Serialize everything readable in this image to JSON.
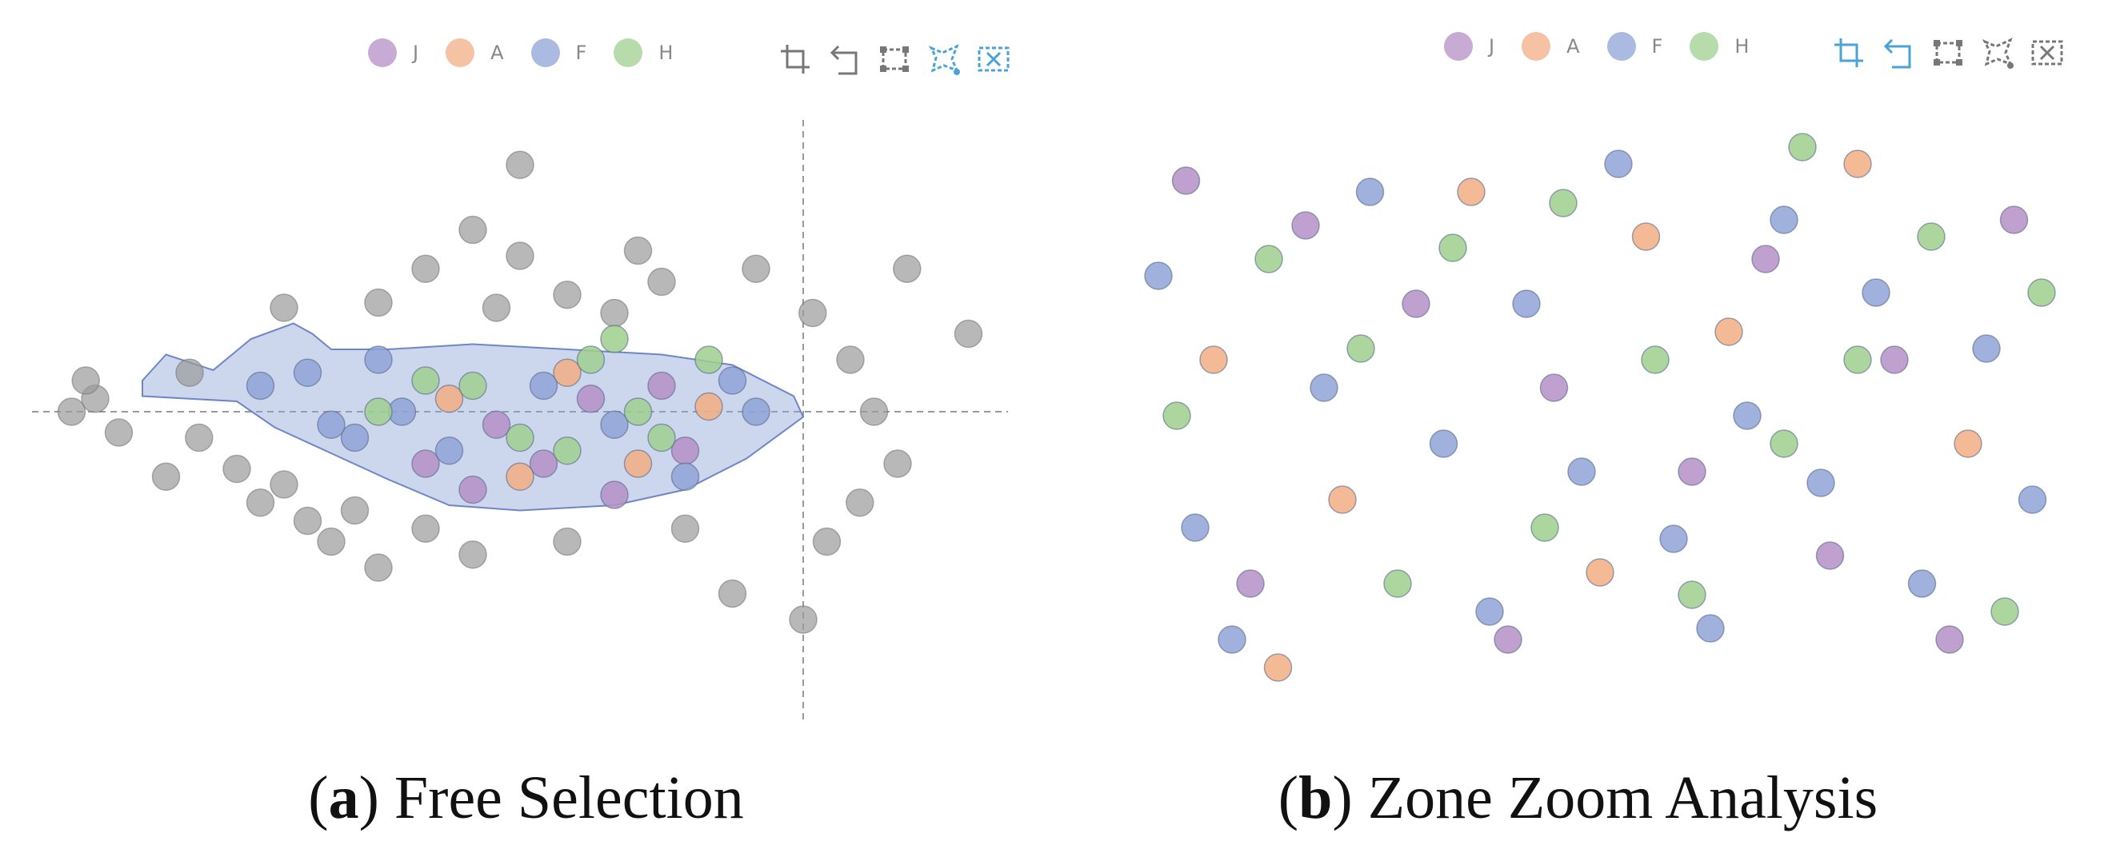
{
  "legend": [
    {
      "label": "J",
      "color": "#b58fc6"
    },
    {
      "label": "A",
      "color": "#f2ae84"
    },
    {
      "label": "F",
      "color": "#8ea3d6"
    },
    {
      "label": "H",
      "color": "#9fcf8e"
    }
  ],
  "colors": {
    "unselected": "#9a9a9a",
    "selection_fill": "#8ea3d6",
    "tool_default": "#777777",
    "tool_active": "#4aa3d6"
  },
  "toolbar_icons": [
    "zoom-icon",
    "zoom-reset-icon",
    "rect-select-icon",
    "lasso-select-icon",
    "clear-select-icon"
  ],
  "panels": [
    {
      "letter": "a",
      "caption": " Free Selection"
    },
    {
      "letter": "b",
      "caption": " Zone Zoom Analysis"
    }
  ],
  "chart_data": [
    {
      "type": "scatter",
      "title": "Free Selection",
      "categories": [
        "J",
        "A",
        "F",
        "H"
      ],
      "x_range": [
        -1,
        1
      ],
      "y_range": [
        -1,
        1
      ],
      "grid": false,
      "note": "approximate distribution read from image; gray points are outside the lasso selection",
      "reference_lines": {
        "x": 0.6,
        "y": 0.0
      },
      "selection_polygon": [
        [
          -0.8,
          0.12
        ],
        [
          -0.75,
          0.22
        ],
        [
          -0.65,
          0.16
        ],
        [
          -0.57,
          0.28
        ],
        [
          -0.48,
          0.34
        ],
        [
          -0.44,
          0.3
        ],
        [
          -0.4,
          0.24
        ],
        [
          -0.28,
          0.24
        ],
        [
          -0.1,
          0.26
        ],
        [
          0.1,
          0.24
        ],
        [
          0.3,
          0.22
        ],
        [
          0.45,
          0.18
        ],
        [
          0.58,
          0.06
        ],
        [
          0.6,
          -0.02
        ],
        [
          0.48,
          -0.18
        ],
        [
          0.35,
          -0.3
        ],
        [
          0.2,
          -0.36
        ],
        [
          0.0,
          -0.38
        ],
        [
          -0.15,
          -0.36
        ],
        [
          -0.28,
          -0.26
        ],
        [
          -0.4,
          -0.16
        ],
        [
          -0.52,
          -0.06
        ],
        [
          -0.6,
          0.04
        ],
        [
          -0.8,
          0.06
        ]
      ],
      "series": [
        {
          "name": "unselected",
          "points": [
            [
              -0.95,
              0.0
            ],
            [
              -0.9,
              0.05
            ],
            [
              -0.85,
              -0.08
            ],
            [
              -0.92,
              0.12
            ],
            [
              -0.7,
              0.15
            ],
            [
              -0.68,
              -0.1
            ],
            [
              -0.6,
              -0.22
            ],
            [
              -0.55,
              -0.35
            ],
            [
              -0.5,
              -0.28
            ],
            [
              -0.45,
              -0.42
            ],
            [
              -0.4,
              -0.5
            ],
            [
              -0.35,
              -0.38
            ],
            [
              -0.3,
              0.42
            ],
            [
              -0.2,
              0.55
            ],
            [
              -0.1,
              0.7
            ],
            [
              0.0,
              0.6
            ],
            [
              -0.05,
              0.4
            ],
            [
              0.1,
              0.45
            ],
            [
              0.2,
              0.38
            ],
            [
              0.3,
              0.5
            ],
            [
              0.5,
              0.55
            ],
            [
              0.62,
              0.38
            ],
            [
              0.7,
              0.2
            ],
            [
              0.75,
              0.0
            ],
            [
              0.8,
              -0.2
            ],
            [
              0.72,
              -0.35
            ],
            [
              0.65,
              -0.5
            ],
            [
              0.6,
              -0.8
            ],
            [
              0.82,
              0.55
            ],
            [
              0.95,
              0.3
            ],
            [
              -0.1,
              -0.55
            ],
            [
              -0.2,
              -0.45
            ],
            [
              0.1,
              -0.5
            ],
            [
              0.35,
              -0.45
            ],
            [
              0.45,
              -0.7
            ],
            [
              -0.3,
              -0.6
            ],
            [
              0.0,
              0.95
            ],
            [
              0.25,
              0.62
            ],
            [
              -0.5,
              0.4
            ],
            [
              -0.75,
              -0.25
            ]
          ]
        },
        {
          "name": "J",
          "points": [
            [
              -0.1,
              -0.3
            ],
            [
              0.05,
              -0.2
            ],
            [
              0.2,
              -0.32
            ],
            [
              0.35,
              -0.15
            ],
            [
              -0.05,
              -0.05
            ],
            [
              0.15,
              0.05
            ],
            [
              0.3,
              0.1
            ],
            [
              -0.2,
              -0.2
            ]
          ]
        },
        {
          "name": "A",
          "points": [
            [
              0.0,
              -0.25
            ],
            [
              0.25,
              -0.2
            ],
            [
              0.4,
              0.02
            ],
            [
              -0.15,
              0.05
            ],
            [
              0.1,
              0.15
            ]
          ]
        },
        {
          "name": "F",
          "points": [
            [
              -0.55,
              0.1
            ],
            [
              -0.45,
              0.15
            ],
            [
              -0.35,
              -0.1
            ],
            [
              -0.25,
              0.0
            ],
            [
              -0.15,
              -0.15
            ],
            [
              0.05,
              0.1
            ],
            [
              0.2,
              -0.05
            ],
            [
              0.35,
              -0.25
            ],
            [
              0.5,
              0.0
            ],
            [
              -0.4,
              -0.05
            ],
            [
              0.45,
              0.12
            ],
            [
              -0.3,
              0.2
            ]
          ]
        },
        {
          "name": "H",
          "points": [
            [
              -0.3,
              0.0
            ],
            [
              -0.1,
              0.1
            ],
            [
              0.0,
              -0.1
            ],
            [
              0.15,
              0.2
            ],
            [
              0.25,
              0.0
            ],
            [
              0.3,
              -0.1
            ],
            [
              0.4,
              0.2
            ],
            [
              -0.2,
              0.12
            ],
            [
              0.1,
              -0.15
            ],
            [
              0.2,
              0.28
            ]
          ]
        }
      ]
    },
    {
      "type": "scatter",
      "title": "Zone Zoom Analysis",
      "categories": [
        "J",
        "A",
        "F",
        "H"
      ],
      "x_range": [
        0,
        1
      ],
      "y_range": [
        0,
        1
      ],
      "grid": false,
      "note": "zoomed view; points loosely arranged in vertical columns, approximate",
      "series": [
        {
          "name": "J",
          "points": [
            [
              0.05,
              0.92
            ],
            [
              0.18,
              0.84
            ],
            [
              0.3,
              0.7
            ],
            [
              0.45,
              0.55
            ],
            [
              0.6,
              0.4
            ],
            [
              0.75,
              0.25
            ],
            [
              0.88,
              0.1
            ],
            [
              0.95,
              0.85
            ],
            [
              0.12,
              0.2
            ],
            [
              0.4,
              0.1
            ],
            [
              0.68,
              0.78
            ],
            [
              0.82,
              0.6
            ]
          ]
        },
        {
          "name": "A",
          "points": [
            [
              0.08,
              0.6
            ],
            [
              0.22,
              0.35
            ],
            [
              0.36,
              0.9
            ],
            [
              0.5,
              0.22
            ],
            [
              0.64,
              0.65
            ],
            [
              0.78,
              0.95
            ],
            [
              0.9,
              0.45
            ],
            [
              0.15,
              0.05
            ],
            [
              0.55,
              0.82
            ]
          ]
        },
        {
          "name": "F",
          "points": [
            [
              0.02,
              0.75
            ],
            [
              0.06,
              0.3
            ],
            [
              0.1,
              0.1
            ],
            [
              0.2,
              0.55
            ],
            [
              0.25,
              0.9
            ],
            [
              0.33,
              0.45
            ],
            [
              0.38,
              0.15
            ],
            [
              0.42,
              0.7
            ],
            [
              0.48,
              0.4
            ],
            [
              0.52,
              0.95
            ],
            [
              0.58,
              0.28
            ],
            [
              0.62,
              0.12
            ],
            [
              0.66,
              0.5
            ],
            [
              0.7,
              0.85
            ],
            [
              0.74,
              0.38
            ],
            [
              0.8,
              0.72
            ],
            [
              0.85,
              0.2
            ],
            [
              0.92,
              0.62
            ],
            [
              0.97,
              0.35
            ]
          ]
        },
        {
          "name": "H",
          "points": [
            [
              0.04,
              0.5
            ],
            [
              0.14,
              0.78
            ],
            [
              0.24,
              0.62
            ],
            [
              0.28,
              0.2
            ],
            [
              0.34,
              0.8
            ],
            [
              0.44,
              0.3
            ],
            [
              0.46,
              0.88
            ],
            [
              0.56,
              0.6
            ],
            [
              0.6,
              0.18
            ],
            [
              0.7,
              0.45
            ],
            [
              0.72,
              0.98
            ],
            [
              0.78,
              0.6
            ],
            [
              0.86,
              0.82
            ],
            [
              0.94,
              0.15
            ],
            [
              0.98,
              0.72
            ]
          ]
        }
      ]
    }
  ]
}
